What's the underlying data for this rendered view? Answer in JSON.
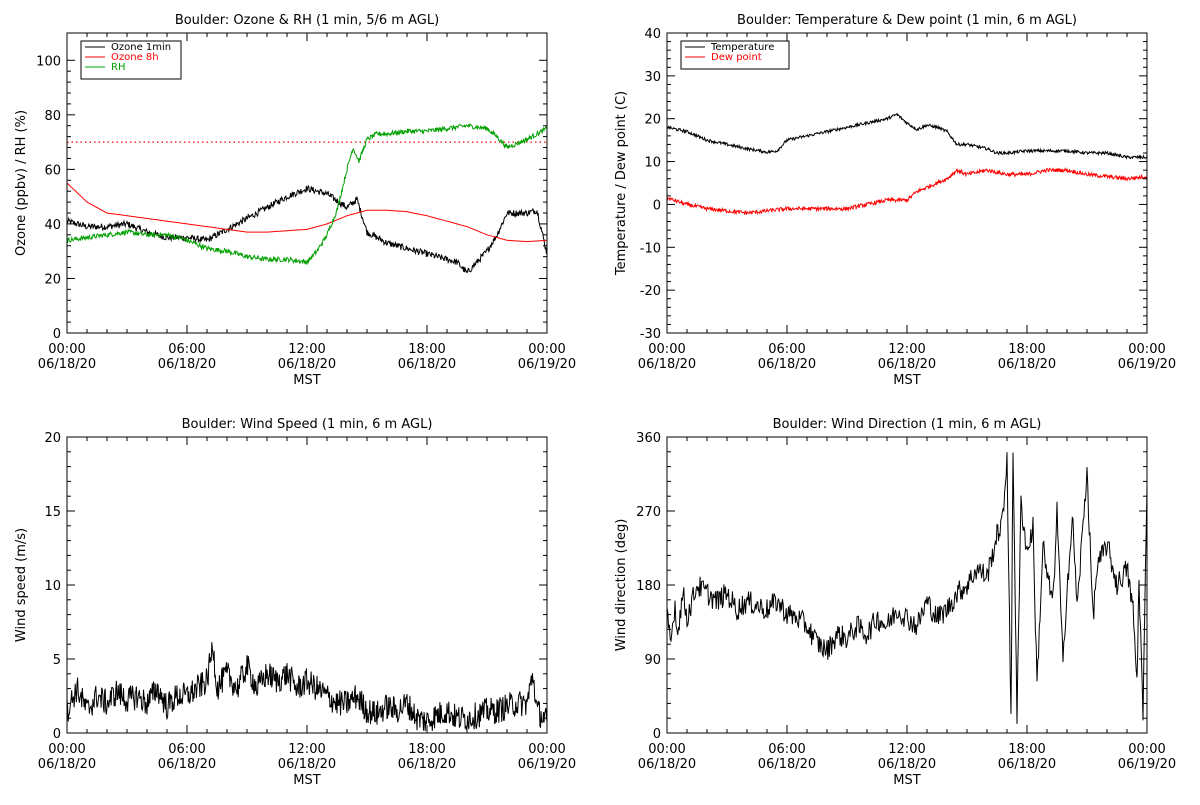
{
  "chart_data": [
    {
      "type": "line",
      "title": "Boulder: Ozone & RH (1 min, 5/6 m AGL)",
      "xlabel": "MST",
      "ylabel": "Ozone (ppbv) / RH (%)",
      "x_ticks": [
        [
          "00:00",
          "06/18/20"
        ],
        [
          "06:00",
          "06/18/20"
        ],
        [
          "12:00",
          "06/18/20"
        ],
        [
          "18:00",
          "06/18/20"
        ],
        [
          "00:00",
          "06/19/20"
        ]
      ],
      "xlim": [
        0,
        24
      ],
      "ylim": [
        0,
        110
      ],
      "y_ticks": [
        0,
        20,
        40,
        60,
        80,
        100
      ],
      "legend": "top-left",
      "reference_line": {
        "y": 70,
        "color": "#ff0000",
        "style": "dotted"
      },
      "series": [
        {
          "name": "Ozone 1min",
          "color": "#000000",
          "x": [
            0,
            1,
            2,
            3,
            4,
            5,
            6,
            7,
            7.5,
            8,
            9,
            10,
            11,
            12,
            13,
            14,
            14.5,
            15,
            16,
            17,
            18,
            19,
            19.5,
            20,
            21,
            21.5,
            22,
            23,
            23.5,
            24
          ],
          "y": [
            41,
            39,
            39,
            40,
            37,
            35,
            35,
            34,
            36,
            38,
            42,
            46,
            50,
            53,
            51,
            46,
            49,
            37,
            33,
            31,
            29,
            27,
            26,
            22,
            30,
            36,
            44,
            44,
            45,
            29
          ]
        },
        {
          "name": "Ozone 8h",
          "color": "#ff0000",
          "x": [
            0,
            1,
            2,
            3,
            4,
            5,
            6,
            7,
            8,
            9,
            10,
            11,
            12,
            13,
            14,
            15,
            16,
            17,
            18,
            19,
            20,
            21,
            22,
            23,
            24
          ],
          "y": [
            55,
            48,
            44,
            43,
            42,
            41,
            40,
            39,
            38,
            37,
            37,
            37.5,
            38,
            40,
            43,
            45,
            45,
            44.5,
            43,
            41,
            39,
            36,
            34,
            33.5,
            34
          ]
        },
        {
          "name": "RH",
          "color": "#00a000",
          "x": [
            0,
            1,
            2,
            3,
            4,
            5,
            6,
            7,
            8,
            9,
            10,
            11,
            12,
            12.5,
            13,
            13.5,
            14,
            14.3,
            14.6,
            15,
            15.5,
            16,
            17,
            18,
            19,
            20,
            21,
            21.5,
            22,
            23,
            24
          ],
          "y": [
            34,
            35,
            36,
            37,
            36,
            36,
            34,
            31,
            30,
            28,
            27,
            27,
            26,
            30,
            36,
            45,
            60,
            68,
            63,
            71,
            73,
            73,
            74,
            74,
            75,
            76,
            75,
            72,
            68,
            71,
            75
          ]
        }
      ]
    },
    {
      "type": "line",
      "title": "Boulder: Temperature & Dew point (1 min, 6 m AGL)",
      "xlabel": "MST",
      "ylabel": "Temperature / Dew point (C)",
      "x_ticks": [
        [
          "00:00",
          "06/18/20"
        ],
        [
          "06:00",
          "06/18/20"
        ],
        [
          "12:00",
          "06/18/20"
        ],
        [
          "18:00",
          "06/18/20"
        ],
        [
          "00:00",
          "06/19/20"
        ]
      ],
      "xlim": [
        0,
        24
      ],
      "ylim": [
        -30,
        40
      ],
      "y_ticks": [
        -30,
        -20,
        -10,
        0,
        10,
        20,
        30,
        40
      ],
      "legend": "top-left",
      "series": [
        {
          "name": "Temperature",
          "color": "#000000",
          "x": [
            0,
            1,
            2,
            3,
            4,
            5,
            5.5,
            6,
            7,
            8,
            9,
            10,
            11,
            11.5,
            12,
            12.5,
            13,
            13.5,
            14,
            14.5,
            15,
            16,
            16.5,
            17,
            18,
            19,
            20,
            21,
            22,
            23,
            24
          ],
          "y": [
            18,
            17,
            15,
            14,
            13,
            12.2,
            12.5,
            15,
            16,
            17,
            18,
            19,
            20,
            21,
            19,
            17.5,
            18.5,
            18,
            17,
            14,
            14,
            13,
            12,
            12,
            12.5,
            12.5,
            12.5,
            12,
            12,
            11,
            11
          ]
        },
        {
          "name": "Dew point",
          "color": "#ff0000",
          "x": [
            0,
            1,
            2,
            3,
            4,
            5,
            6,
            7,
            8,
            9,
            10,
            11,
            12,
            12.5,
            13,
            14,
            14.5,
            15,
            16,
            17,
            18,
            19,
            20,
            21,
            22,
            23,
            24
          ],
          "y": [
            1.5,
            0,
            -1,
            -1.5,
            -2,
            -1.5,
            -1,
            -1,
            -1,
            -1,
            0,
            1,
            1,
            3,
            4,
            6,
            8,
            7,
            8,
            7,
            7,
            8,
            8,
            7,
            6.5,
            6,
            6.5
          ]
        }
      ]
    },
    {
      "type": "line",
      "title": "Boulder: Wind Speed (1 min, 6 m AGL)",
      "xlabel": "MST",
      "ylabel": "Wind speed (m/s)",
      "x_ticks": [
        [
          "00:00",
          "06/18/20"
        ],
        [
          "06:00",
          "06/18/20"
        ],
        [
          "12:00",
          "06/18/20"
        ],
        [
          "18:00",
          "06/18/20"
        ],
        [
          "00:00",
          "06/19/20"
        ]
      ],
      "xlim": [
        0,
        24
      ],
      "ylim": [
        0,
        20
      ],
      "y_ticks": [
        0,
        5,
        10,
        15,
        20
      ],
      "series": [
        {
          "color": "#000000",
          "x": [
            0,
            0.5,
            1,
            1.5,
            2,
            2.5,
            3,
            3.5,
            4,
            4.5,
            5,
            5.5,
            6,
            6.5,
            7,
            7.3,
            7.5,
            8,
            8.5,
            9,
            9.5,
            10,
            10.5,
            11,
            11.5,
            12,
            12.5,
            13,
            13.5,
            14,
            14.5,
            15,
            15.5,
            16,
            16.5,
            17,
            17.5,
            18,
            18.5,
            19,
            19.5,
            20,
            20.5,
            21,
            21.5,
            22,
            22.5,
            23,
            23.3,
            23.5,
            24
          ],
          "y": [
            1.5,
            3,
            1.5,
            2.5,
            2,
            2.8,
            2.2,
            2.5,
            2,
            3,
            1.8,
            2.5,
            2.5,
            3,
            3.5,
            6,
            3,
            4,
            3,
            4.5,
            3,
            4,
            3.5,
            4,
            3,
            3.5,
            3,
            2.5,
            2,
            2,
            2.5,
            1.5,
            1.3,
            1.8,
            1.5,
            2,
            1,
            0.8,
            1.2,
            1.5,
            1,
            1,
            1.2,
            1.5,
            1.5,
            1.8,
            2,
            2,
            4,
            1.5,
            0.8
          ]
        }
      ]
    },
    {
      "type": "line",
      "title": "Boulder: Wind Direction (1 min, 6 m AGL)",
      "xlabel": "MST",
      "ylabel": "Wind direction (deg)",
      "x_ticks": [
        [
          "00:00",
          "06/18/20"
        ],
        [
          "06:00",
          "06/18/20"
        ],
        [
          "12:00",
          "06/18/20"
        ],
        [
          "18:00",
          "06/18/20"
        ],
        [
          "00:00",
          "06/19/20"
        ]
      ],
      "xlim": [
        0,
        24
      ],
      "ylim": [
        0,
        360
      ],
      "y_ticks": [
        0,
        90,
        180,
        270,
        360
      ],
      "series": [
        {
          "color": "#000000",
          "x": [
            0,
            0.2,
            0.4,
            0.5,
            0.8,
            1,
            1.5,
            2,
            2.5,
            3,
            3.5,
            4,
            4.5,
            5,
            5.5,
            6,
            6.5,
            7,
            7.5,
            8,
            8.5,
            9,
            9.5,
            10,
            10.5,
            11,
            11.5,
            12,
            12.5,
            13,
            13.5,
            14,
            14.5,
            15,
            15.5,
            16,
            16.5,
            16.8,
            17,
            17.2,
            17.3,
            17.5,
            17.7,
            18,
            18.3,
            18.5,
            18.8,
            19,
            19.3,
            19.5,
            19.8,
            20,
            20.3,
            20.5,
            21,
            21.3,
            21.5,
            22,
            22.5,
            23,
            23.3,
            23.5,
            23.6,
            23.8,
            24
          ],
          "y": [
            140,
            110,
            160,
            120,
            170,
            140,
            180,
            170,
            160,
            170,
            150,
            160,
            155,
            150,
            160,
            145,
            140,
            130,
            110,
            100,
            120,
            115,
            130,
            120,
            140,
            130,
            150,
            140,
            130,
            160,
            140,
            150,
            170,
            180,
            200,
            190,
            240,
            260,
            340,
            10,
            350,
            20,
            280,
            220,
            250,
            60,
            230,
            190,
            160,
            270,
            80,
            180,
            260,
            150,
            320,
            140,
            200,
            230,
            180,
            200,
            150,
            60,
            190,
            20,
            300
          ]
        }
      ]
    }
  ]
}
